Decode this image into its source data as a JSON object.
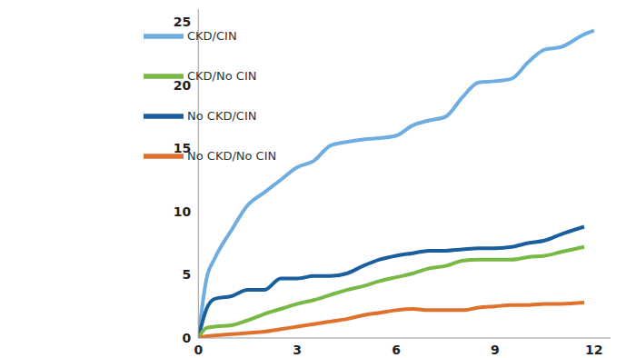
{
  "chart_data": {
    "type": "line",
    "x": [
      0,
      0.25,
      0.5,
      1,
      1.5,
      2,
      2.5,
      3,
      3.5,
      4,
      4.5,
      5,
      5.5,
      6,
      6.5,
      7,
      7.5,
      8,
      8.5,
      9,
      9.5,
      10,
      10.5,
      11,
      11.7,
      12
    ],
    "series": [
      {
        "name": "CKD/CIN",
        "color": "#6fade0",
        "values": [
          0,
          4.7,
          6.3,
          8.5,
          10.5,
          11.5,
          12.5,
          13.5,
          14,
          15.2,
          15.5,
          15.7,
          15.8,
          16,
          16.8,
          17.2,
          17.5,
          19,
          20.2,
          20.3,
          20.5,
          21.8,
          22.8,
          23,
          24,
          24.3
        ]
      },
      {
        "name": "No CKD/CIN",
        "color": "#1a5e9e",
        "values": [
          0,
          2.3,
          3.1,
          3.3,
          3.8,
          3.8,
          4.7,
          4.7,
          4.9,
          4.9,
          5.1,
          5.7,
          6.2,
          6.5,
          6.7,
          6.9,
          6.9,
          7,
          7.1,
          7.1,
          7.2,
          7.5,
          7.7,
          8.2,
          8.8,
          null
        ]
      },
      {
        "name": "CKD/No CIN",
        "color": "#77b944",
        "values": [
          0,
          0.8,
          0.9,
          1.0,
          1.4,
          1.9,
          2.3,
          2.7,
          3.0,
          3.4,
          3.8,
          4.1,
          4.5,
          4.8,
          5.1,
          5.5,
          5.7,
          6.1,
          6.2,
          6.2,
          6.2,
          6.4,
          6.5,
          6.8,
          7.2,
          null
        ]
      },
      {
        "name": "No CKD/No CIN",
        "color": "#e0712c",
        "values": [
          0,
          0.15,
          0.2,
          0.3,
          0.4,
          0.5,
          0.7,
          0.9,
          1.1,
          1.3,
          1.5,
          1.8,
          2.0,
          2.2,
          2.3,
          2.2,
          2.2,
          2.2,
          2.4,
          2.5,
          2.6,
          2.6,
          2.7,
          2.7,
          2.8,
          null
        ]
      }
    ],
    "xlim": [
      0,
      12.5
    ],
    "xticks": [
      0,
      3,
      6,
      9,
      12
    ],
    "ylim": [
      0,
      26
    ],
    "yticks": [
      0,
      5,
      10,
      15,
      20,
      25
    ],
    "grid": false,
    "legend": "upper left"
  }
}
